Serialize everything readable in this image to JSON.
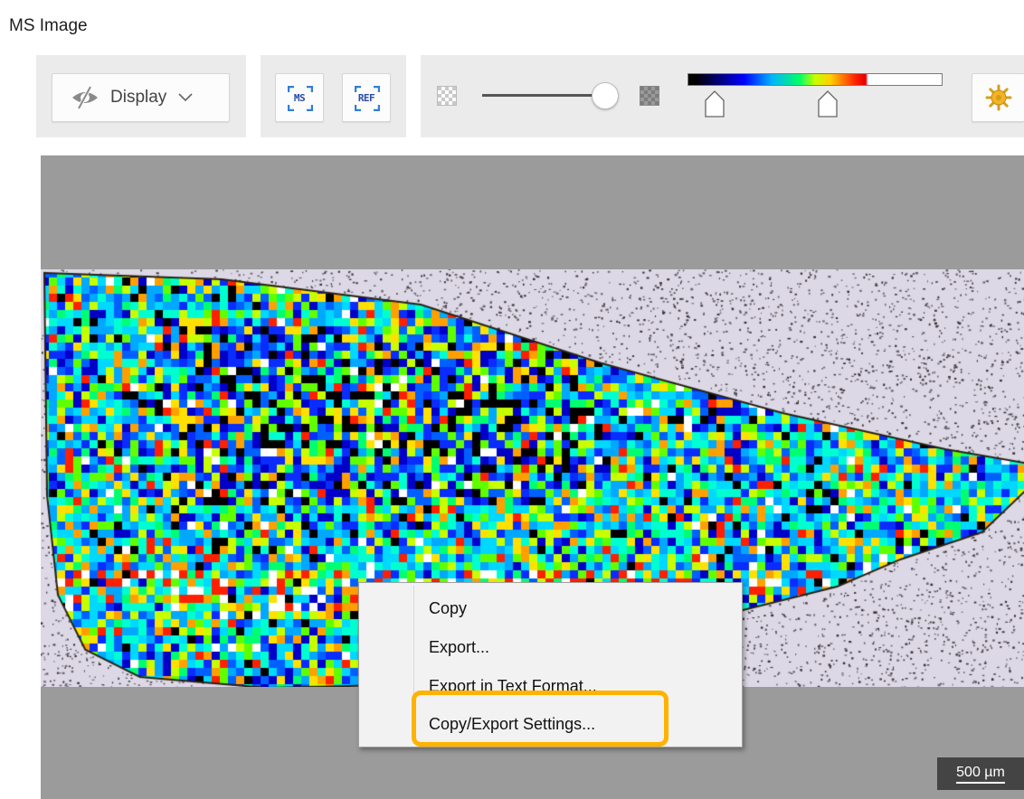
{
  "window": {
    "title": "MS Image"
  },
  "toolbar": {
    "display_label": "Display",
    "ms_button_label": "MS",
    "ref_button_label": "REF",
    "opacity_level": 0.92,
    "colorbar_colors": [
      "#000000",
      "#0000ff",
      "#00b4ff",
      "#00ff66",
      "#c8ff00",
      "#ffd000",
      "#ff2000",
      "#ffffff"
    ],
    "settings_icon": "sun-gear-icon"
  },
  "image": {
    "scale_label": "500 µm",
    "background_color": "#9b9b9b"
  },
  "context_menu": {
    "items": [
      {
        "label": "Copy"
      },
      {
        "label": "Export..."
      },
      {
        "label": "Export in Text Format..."
      },
      {
        "label": "Copy/Export Settings..."
      }
    ],
    "highlight_color": "#ffb300"
  }
}
